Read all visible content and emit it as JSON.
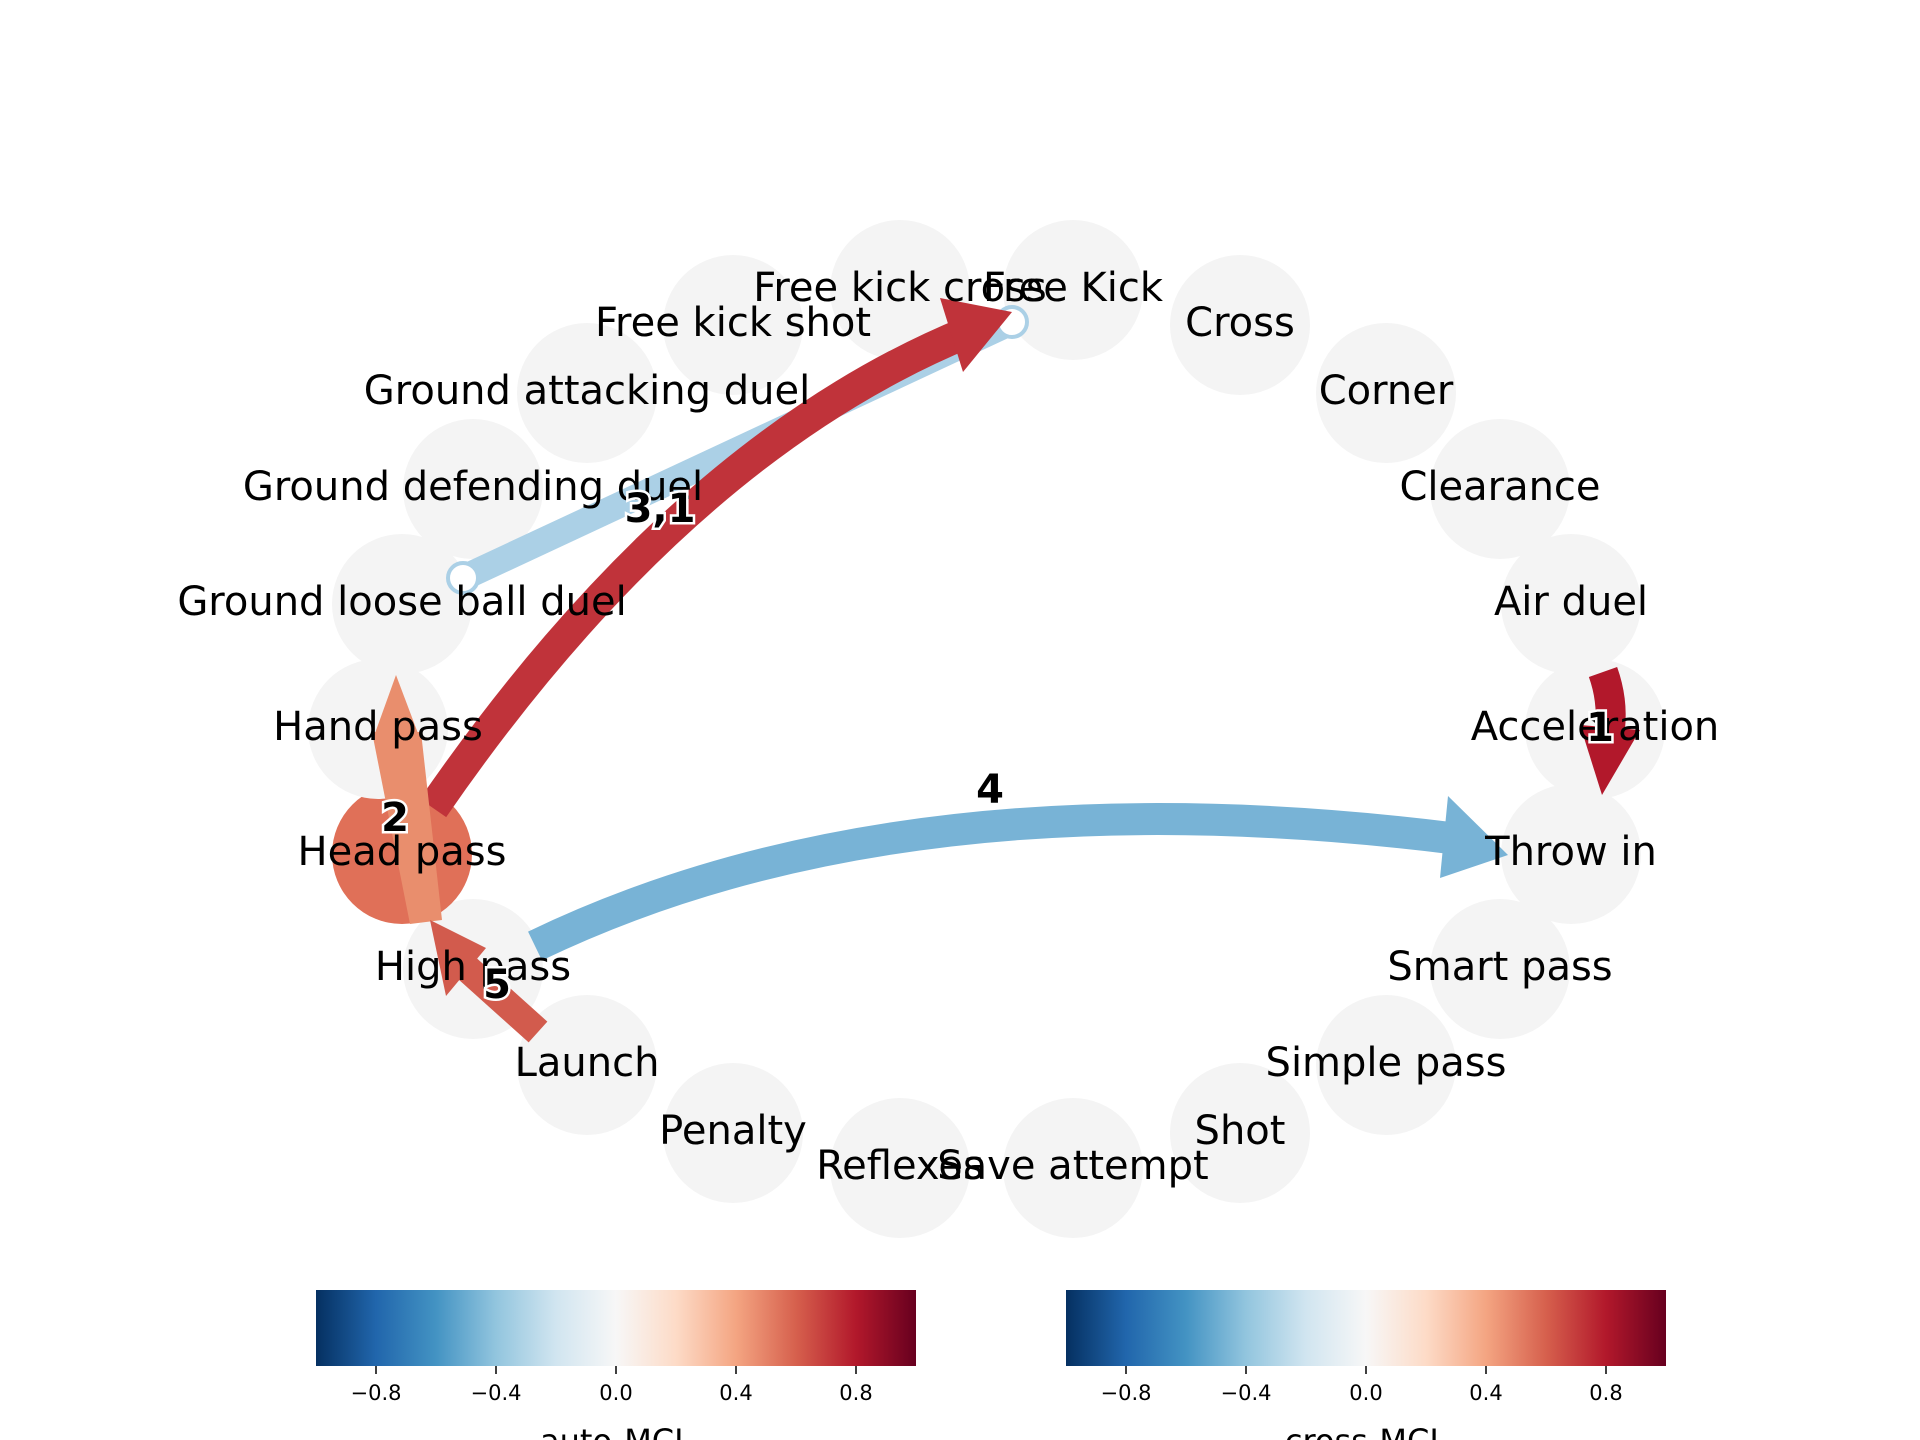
{
  "nodes": [
    "Free Kick",
    "Cross",
    "Corner",
    "Clearance",
    "Air duel",
    "Acceleration",
    "Throw in",
    "Smart pass",
    "Simple pass",
    "Shot",
    "Save attempt",
    "Reflexes",
    "Penalty",
    "Launch",
    "High pass",
    "Head pass",
    "Hand pass",
    "Ground loose ball duel",
    "Ground defending duel",
    "Ground attacking duel",
    "Free kick shot",
    "Free kick cross"
  ],
  "highlighted_node": {
    "name": "Head pass",
    "auto_mcl": 0.6
  },
  "edges": [
    {
      "label": "1",
      "from": "Air duel",
      "to": "Acceleration",
      "cross_mcl": 0.8
    },
    {
      "label": "2",
      "from": "Head pass",
      "to": "Hand pass",
      "cross_mcl": 0.5
    },
    {
      "label": "3",
      "from": "Ground loose ball duel",
      "to": "Free Kick",
      "cross_mcl": -0.3
    },
    {
      "label": "1",
      "from": "Head pass",
      "to": "Free Kick",
      "cross_mcl": 0.75
    },
    {
      "label": "4",
      "from": "High pass",
      "to": "Throw in",
      "cross_mcl": -0.5
    },
    {
      "label": "5",
      "from": "Launch",
      "to": "High pass",
      "cross_mcl": 0.65
    }
  ],
  "edge_label_texts": {
    "e1": "1",
    "e2": "2",
    "e31": "3,1",
    "e4": "4",
    "e5": "5"
  },
  "colorbars": [
    {
      "label": "auto-MCL",
      "ticks": [
        "−0.8",
        "−0.4",
        "0.0",
        "0.4",
        "0.8"
      ],
      "tick_values": [
        -0.8,
        -0.4,
        0.0,
        0.4,
        0.8
      ],
      "range": [
        -1,
        1
      ]
    },
    {
      "label": "cross-MCL",
      "ticks": [
        "−0.8",
        "−0.4",
        "0.0",
        "0.4",
        "0.8"
      ],
      "tick_values": [
        -0.8,
        -0.4,
        0.0,
        0.4,
        0.8
      ],
      "range": [
        -1,
        1
      ]
    }
  ],
  "colors": {
    "node_bg": "#f4f4f4",
    "colormap": "RdBu_r"
  }
}
